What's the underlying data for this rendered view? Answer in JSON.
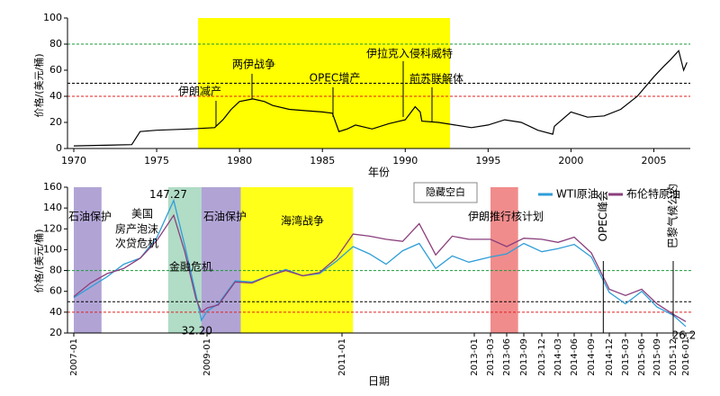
{
  "chart_data": [
    {
      "type": "line",
      "x_label": "年份",
      "y_label": "价格/(美元/桶)",
      "color": "#000000",
      "x": [
        1970,
        1973.5,
        1974,
        1975,
        1977,
        1978.5,
        1979,
        1979.5,
        1980,
        1980.8,
        1981.5,
        1982,
        1983,
        1984,
        1985,
        1985.6,
        1986,
        1986.5,
        1987,
        1988,
        1989,
        1990,
        1990.6,
        1990.9,
        1991,
        1992,
        1993,
        1994,
        1995,
        1996,
        1997,
        1998,
        1998.9,
        1999,
        2000,
        2001,
        2002,
        2003,
        2004,
        2005,
        2005.6,
        2006,
        2006.5,
        2006.8,
        2007
      ],
      "values": [
        2,
        3,
        13,
        14,
        15,
        16,
        22,
        30,
        36,
        38,
        36,
        33,
        30,
        29,
        28,
        27,
        13,
        15,
        18,
        15,
        19,
        22,
        32,
        28,
        21,
        20,
        18,
        16,
        18,
        22,
        20,
        14,
        11,
        17,
        28,
        24,
        25,
        30,
        40,
        55,
        63,
        68,
        75,
        60,
        66
      ],
      "xlim": [
        1970,
        2007.2
      ],
      "xticks": [
        1970,
        1975,
        1980,
        1985,
        1990,
        1995,
        2000,
        2005
      ],
      "ylim": [
        0,
        100
      ],
      "yticks": [
        0,
        20,
        40,
        60,
        80,
        100
      ],
      "bands": [
        {
          "start": 1977.5,
          "end": 1992.7,
          "color": "#ffff00"
        }
      ],
      "reflines": [
        {
          "value": 80,
          "color": "#1a9a3a"
        },
        {
          "value": 50,
          "color": "#000000"
        },
        {
          "value": 40,
          "color": "#e02020"
        }
      ],
      "annotations": [
        "伊朗减产",
        "两伊战争",
        "OPEC增产",
        "伊拉克入侵科威特",
        "前苏联解体"
      ]
    },
    {
      "type": "line",
      "x_label": "日期",
      "y_label": "价格/(美元/桶)",
      "button": "隐藏空白",
      "x": [
        "2007-01",
        "2007-04",
        "2007-07",
        "2007-10",
        "2008-01",
        "2008-04",
        "2008-07",
        "2008-09",
        "2008-11",
        "2008-12",
        "2009-01",
        "2009-03",
        "2009-06",
        "2009-09",
        "2009-12",
        "2010-03",
        "2010-06",
        "2010-09",
        "2010-12",
        "2011-03",
        "2011-06",
        "2011-09",
        "2011-12",
        "2012-03",
        "2012-06",
        "2012-09",
        "2012-12",
        "2013-03",
        "2013-06",
        "2013-09",
        "2013-12",
        "2014-03",
        "2014-06",
        "2014-09",
        "2014-12",
        "2015-03",
        "2015-06",
        "2015-09",
        "2015-12",
        "2016-01"
      ],
      "series": [
        {
          "name": "WTI原油",
          "color": "#2f9ed8",
          "values": [
            54,
            64,
            74,
            86,
            92,
            112,
            147.27,
            104,
            57,
            32.2,
            41,
            48,
            70,
            69,
            75,
            81,
            75,
            77,
            89,
            103,
            96,
            86,
            99,
            106,
            82,
            94,
            88,
            93,
            96,
            106,
            98,
            101,
            105,
            93,
            59,
            48,
            60,
            45,
            37,
            26.2
          ],
          "value_labels": {
            "9": "32.20"
          }
        },
        {
          "name": "布伦特原油",
          "color": "#8a3f7c",
          "values": [
            55,
            68,
            77,
            82,
            92,
            109,
            133,
            98,
            53,
            40,
            44,
            47,
            69,
            68,
            75,
            80,
            75,
            78,
            92,
            115,
            113,
            110,
            108,
            125,
            95,
            113,
            110,
            110,
            103,
            111,
            110,
            107,
            112,
            97,
            62,
            56,
            62,
            48,
            38,
            31
          ]
        }
      ],
      "xticks": [
        "2007-01",
        "2009-01",
        "2011-01",
        "2013-01",
        "2013-03",
        "2013-06",
        "2013-09",
        "2013-12",
        "2014-03",
        "2014-06",
        "2014-09",
        "2014-12",
        "2015-03",
        "2015-06",
        "2015-09",
        "2015-12",
        "2016-01"
      ],
      "ylim": [
        20,
        160
      ],
      "yticks": [
        20,
        40,
        60,
        80,
        100,
        120,
        140,
        160
      ],
      "bands": [
        {
          "start": "2007-01",
          "end": "2007-06",
          "color": "#a89ad0",
          "label": "石油保护"
        },
        {
          "start": "2008-06",
          "end": "2008-12",
          "color": "#a8d8c0",
          "label": "金融危机"
        },
        {
          "start": "2008-12",
          "end": "2009-07",
          "color": "#a89ad0",
          "label": "石油保护"
        },
        {
          "start": "2009-07",
          "end": "2011-03",
          "color": "#ffff00",
          "label": "海湾战争"
        },
        {
          "start": "2013-03",
          "end": "2013-08",
          "color": "#f08080",
          "label": "伊朗推行核计划"
        }
      ],
      "annotation_lines": [
        "美国",
        "房产泡沫",
        "次贷危机"
      ],
      "events": [
        {
          "date": "2014-11",
          "label": "OPEC峰会"
        },
        {
          "date": "2015-12",
          "label": "巴黎气候公约"
        }
      ],
      "reflines": [
        {
          "value": 80,
          "color": "#1a9a3a"
        },
        {
          "value": 50,
          "color": "#000000"
        },
        {
          "value": 40,
          "color": "#e02020"
        }
      ]
    }
  ]
}
